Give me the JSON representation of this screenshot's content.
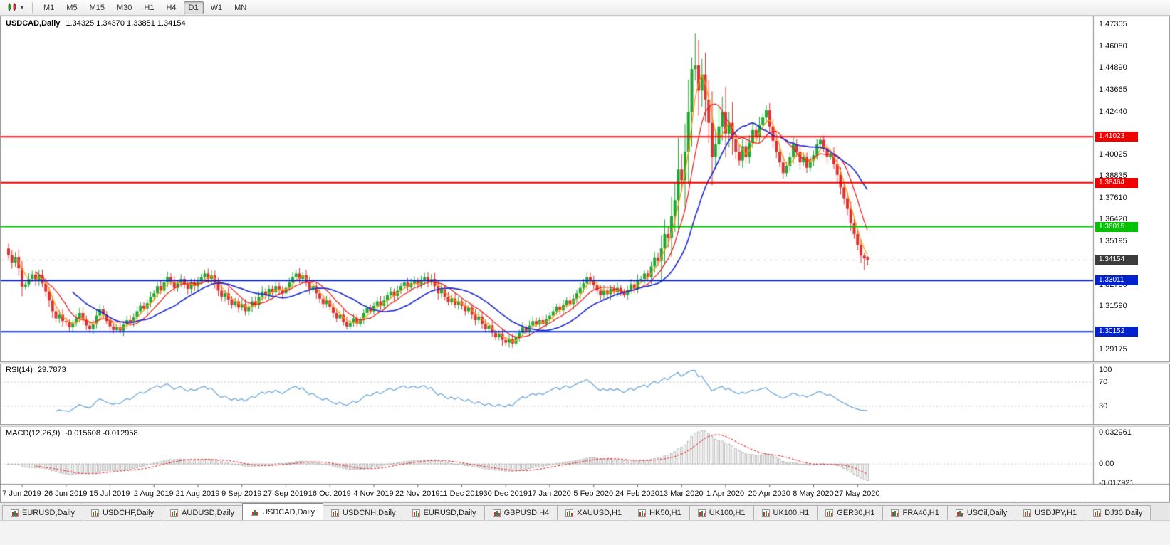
{
  "toolbar": {
    "chart_type_button": {
      "icon": "candlestick-chart-icon"
    },
    "timeframes": [
      "M1",
      "M5",
      "M15",
      "M30",
      "H1",
      "H4",
      "D1",
      "W1",
      "MN"
    ],
    "active_timeframe": "D1"
  },
  "chart": {
    "title": "USDCAD,Daily",
    "ohlc_text": "1.34325 1.34370 1.33851 1.34154"
  },
  "price_scale": {
    "labels": [
      "1.47305",
      "1.46080",
      "1.44890",
      "1.43665",
      "1.42440",
      "1.40025",
      "1.38835",
      "1.37610",
      "1.36420",
      "1.35195",
      "1.32780",
      "1.31590",
      "1.29175"
    ],
    "badges": [
      {
        "text": "1.41023",
        "color": "#f20000"
      },
      {
        "text": "1.38464",
        "color": "#f20000"
      },
      {
        "text": "1.36015",
        "color": "#00c400"
      },
      {
        "text": "1.33011",
        "color": "#0022cc"
      },
      {
        "text": "1.30152",
        "color": "#0022cc"
      },
      {
        "text": "1.34154",
        "color": "#3c3c3c",
        "current": true
      }
    ]
  },
  "rsi_panel": {
    "label": "RSI(14)",
    "value": "29.7873",
    "period": 14,
    "levels": [
      70,
      30
    ],
    "scale_labels": [
      "100",
      "70",
      "30"
    ],
    "line_color": "#6fa8dc"
  },
  "macd_panel": {
    "label": "MACD(12,26,9)",
    "value": "-0.015608 -0.012958",
    "fast": 12,
    "slow": 26,
    "signal": 9,
    "scale_labels": [
      "0.032961",
      "0.00",
      "-0.017921"
    ],
    "histogram_color": "#b0b0b0",
    "signal_color": "#e03030"
  },
  "x_axis": {
    "dates": [
      "7 Jun 2019",
      "26 Jun 2019",
      "15 Jul 2019",
      "2 Aug 2019",
      "21 Aug 2019",
      "9 Sep 2019",
      "27 Sep 2019",
      "16 Oct 2019",
      "4 Nov 2019",
      "22 Nov 2019",
      "11 Dec 2019",
      "30 Dec 2019",
      "17 Jan 2020",
      "5 Feb 2020",
      "24 Feb 2020",
      "13 Mar 2020",
      "1 Apr 2020",
      "20 Apr 2020",
      "8 May 2020",
      "27 May 2020"
    ]
  },
  "tabs": {
    "items": [
      {
        "label": "EURUSD,Daily",
        "active": false
      },
      {
        "label": "USDCHF,Daily",
        "active": false
      },
      {
        "label": "AUDUSD,Daily",
        "active": false
      },
      {
        "label": "USDCAD,Daily",
        "active": true
      },
      {
        "label": "USDCNH,Daily",
        "active": false
      },
      {
        "label": "EURUSD,Daily",
        "active": false
      },
      {
        "label": "GBPUSD,H4",
        "active": false
      },
      {
        "label": "XAUUSD,H1",
        "active": false
      },
      {
        "label": "HK50,H1",
        "active": false
      },
      {
        "label": "UK100,H1",
        "active": false
      },
      {
        "label": "UK100,H1",
        "active": false
      },
      {
        "label": "GER30,H1",
        "active": false
      },
      {
        "label": "FRA40,H1",
        "active": false
      },
      {
        "label": "USOil,Daily",
        "active": false
      },
      {
        "label": "USDJPY,H1",
        "active": false
      },
      {
        "label": "DJ30,Daily",
        "active": false
      }
    ]
  },
  "chart_data": {
    "type": "candlestick",
    "symbol": "USDCAD",
    "timeframe": "Daily",
    "title": "USDCAD,Daily",
    "last_candle": {
      "open": 1.34325,
      "high": 1.3437,
      "low": 1.33851,
      "close": 1.34154
    },
    "current_price": 1.34154,
    "visible_price_range": [
      1.285,
      1.477
    ],
    "peak_high": 1.468,
    "up_color": "#1fa832",
    "down_color": "#e03232",
    "h_lines": [
      {
        "price": 1.41023,
        "color": "#f20000"
      },
      {
        "price": 1.38464,
        "color": "#f20000"
      },
      {
        "price": 1.36015,
        "color": "#00c400"
      },
      {
        "price": 1.33011,
        "color": "#0022cc"
      },
      {
        "price": 1.30152,
        "color": "#0022cc"
      }
    ],
    "moving_averages": [
      {
        "period": 4,
        "color": "#ff9900"
      },
      {
        "period": 9,
        "color": "#f01515"
      },
      {
        "period": 20,
        "color": "#1f2fd0"
      }
    ],
    "closes": [
      1.3443,
      1.3402,
      1.3433,
      1.337,
      1.3267,
      1.328,
      1.331,
      1.3335,
      1.33,
      1.333,
      1.3285,
      1.324,
      1.319,
      1.313,
      1.309,
      1.311,
      1.3075,
      1.3068,
      1.304,
      1.3065,
      1.309,
      1.312,
      1.3085,
      1.305,
      1.303,
      1.306,
      1.3105,
      1.314,
      1.311,
      1.3075,
      1.3045,
      1.3025,
      1.304,
      1.3022,
      1.3055,
      1.308,
      1.3065,
      1.3095,
      1.313,
      1.316,
      1.3145,
      1.3175,
      1.321,
      1.323,
      1.327,
      1.3245,
      1.329,
      1.332,
      1.3295,
      1.326,
      1.3285,
      1.331,
      1.328,
      1.3255,
      1.329,
      1.327,
      1.3295,
      1.332,
      1.334,
      1.331,
      1.333,
      1.329,
      1.3245,
      1.321,
      1.323,
      1.3195,
      1.3165,
      1.3185,
      1.315,
      1.317,
      1.313,
      1.3155,
      1.3185,
      1.3165,
      1.321,
      1.324,
      1.322,
      1.3255,
      1.3235,
      1.327,
      1.325,
      1.323,
      1.326,
      1.329,
      1.332,
      1.334,
      1.331,
      1.333,
      1.329,
      1.325,
      1.327,
      1.323,
      1.32,
      1.317,
      1.319,
      1.3155,
      1.312,
      1.309,
      1.311,
      1.307,
      1.3045,
      1.3065,
      1.309,
      1.306,
      1.3085,
      1.312,
      1.315,
      1.313,
      1.316,
      1.3185,
      1.316,
      1.319,
      1.322,
      1.324,
      1.3215,
      1.3245,
      1.327,
      1.329,
      1.3265,
      1.3285,
      1.33,
      1.328,
      1.3305,
      1.332,
      1.329,
      1.331,
      1.327,
      1.323,
      1.325,
      1.321,
      1.318,
      1.32,
      1.3165,
      1.3185,
      1.316,
      1.313,
      1.315,
      1.311,
      1.308,
      1.31,
      1.306,
      1.303,
      1.305,
      1.301,
      1.2985,
      1.3005,
      1.297,
      1.2955,
      1.2975,
      1.295,
      1.2985,
      1.301,
      1.304,
      1.302,
      1.305,
      1.3075,
      1.3055,
      1.308,
      1.306,
      1.3085,
      1.3105,
      1.313,
      1.3155,
      1.3135,
      1.3165,
      1.319,
      1.317,
      1.32,
      1.323,
      1.326,
      1.3285,
      1.332,
      1.33,
      1.3275,
      1.3245,
      1.322,
      1.3245,
      1.3225,
      1.3255,
      1.3235,
      1.326,
      1.324,
      1.322,
      1.325,
      1.328,
      1.3255,
      1.3305,
      1.331,
      1.334,
      1.332,
      1.338,
      1.343,
      1.341,
      1.348,
      1.356,
      1.354,
      1.366,
      1.375,
      1.392,
      1.386,
      1.402,
      1.424,
      1.448,
      1.45,
      1.436,
      1.445,
      1.431,
      1.418,
      1.399,
      1.406,
      1.416,
      1.424,
      1.412,
      1.418,
      1.409,
      1.402,
      1.397,
      1.405,
      1.399,
      1.407,
      1.414,
      1.41,
      1.417,
      1.421,
      1.425,
      1.416,
      1.408,
      1.402,
      1.396,
      1.39,
      1.394,
      1.399,
      1.406,
      1.402,
      1.396,
      1.399,
      1.393,
      1.397,
      1.4,
      1.406,
      1.4085,
      1.404,
      1.399,
      1.401,
      1.395,
      1.389,
      1.382,
      1.376,
      1.37,
      1.362,
      1.356,
      1.35,
      1.344,
      1.3425,
      1.34154
    ],
    "wick_overrides": [
      {
        "i": 202,
        "h": 1.4545
      },
      {
        "i": 203,
        "h": 1.468
      },
      {
        "i": 253,
        "l": 1.336
      },
      {
        "i": 254,
        "o": 1.34325,
        "h": 1.3437,
        "l": 1.33851,
        "c": 1.34154
      }
    ]
  }
}
